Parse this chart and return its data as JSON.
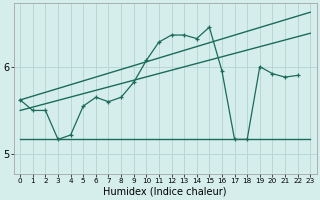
{
  "title": "",
  "xlabel": "Humidex (Indice chaleur)",
  "ylabel": "",
  "background_color": "#d5eeeb",
  "grid_color": "#b8d8d5",
  "line_color": "#1a6b5a",
  "xlim": [
    -0.5,
    23.5
  ],
  "ylim": [
    4.78,
    6.72
  ],
  "yticks": [
    5,
    6
  ],
  "xtick_labels": [
    "0",
    "1",
    "2",
    "3",
    "4",
    "5",
    "6",
    "7",
    "8",
    "9",
    "10",
    "11",
    "12",
    "13",
    "14",
    "15",
    "16",
    "17",
    "18",
    "19",
    "20",
    "21",
    "22",
    "23"
  ],
  "series1_x": [
    0,
    1,
    2,
    3,
    4,
    5,
    6,
    7,
    8,
    9,
    10,
    11,
    12,
    13,
    14,
    15,
    16,
    17,
    18,
    19,
    20,
    21,
    22
  ],
  "series1_y": [
    5.62,
    5.5,
    5.5,
    5.17,
    5.22,
    5.55,
    5.65,
    5.6,
    5.65,
    5.82,
    6.07,
    6.28,
    6.36,
    6.36,
    6.32,
    6.45,
    5.95,
    5.17,
    5.17,
    6.0,
    5.92,
    5.88,
    5.9
  ],
  "series2_x": [
    0,
    23
  ],
  "series2_y": [
    5.17,
    5.17
  ],
  "series3_x": [
    0,
    23
  ],
  "series3_y": [
    5.5,
    6.38
  ],
  "series4_x": [
    0,
    23
  ],
  "series4_y": [
    5.62,
    6.62
  ]
}
